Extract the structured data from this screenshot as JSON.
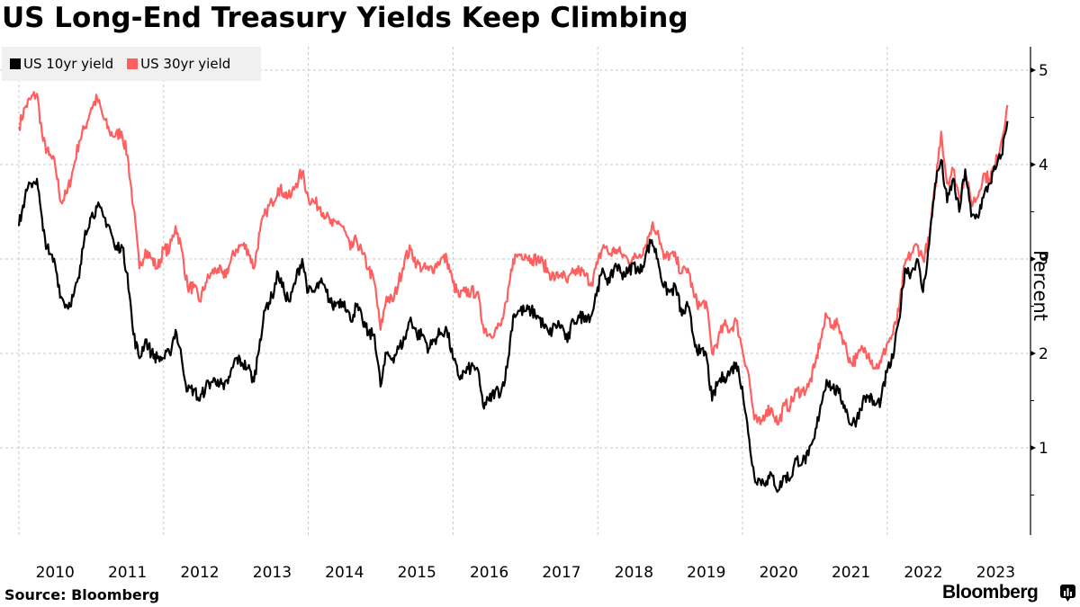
{
  "chart_data": {
    "type": "line",
    "title": "US Long-End Treasury Yields Keep Climbing",
    "xlabel": "",
    "ylabel": "Percent",
    "ylim": [
      0,
      5.25
    ],
    "xlim": [
      2010.0,
      2024.0
    ],
    "y_ticks": [
      "1",
      "2",
      "3",
      "4",
      "5"
    ],
    "x_ticks": [
      "2010",
      "2011",
      "2012",
      "2013",
      "2014",
      "2015",
      "2016",
      "2017",
      "2018",
      "2019",
      "2020",
      "2021",
      "2022",
      "2023"
    ],
    "grid": true,
    "legend_position": "top-left",
    "x_start": 2010.0,
    "x_step_years": 0.0833,
    "series": [
      {
        "name": "US 10yr yield",
        "color": "#000000",
        "values": [
          3.35,
          3.65,
          3.8,
          3.85,
          3.3,
          3.05,
          2.95,
          2.6,
          2.5,
          2.6,
          2.8,
          3.3,
          3.45,
          3.55,
          3.45,
          3.35,
          3.1,
          3.15,
          2.85,
          2.2,
          1.95,
          2.15,
          2.0,
          1.95,
          1.95,
          2.0,
          2.25,
          1.95,
          1.6,
          1.62,
          1.5,
          1.65,
          1.7,
          1.72,
          1.62,
          1.75,
          1.95,
          1.9,
          1.85,
          1.7,
          2.15,
          2.5,
          2.6,
          2.85,
          2.65,
          2.55,
          2.8,
          3.0,
          2.65,
          2.65,
          2.75,
          2.65,
          2.5,
          2.55,
          2.55,
          2.35,
          2.5,
          2.35,
          2.2,
          2.2,
          1.65,
          2.0,
          1.95,
          2.05,
          2.15,
          2.38,
          2.2,
          2.2,
          2.05,
          2.15,
          2.22,
          2.25,
          1.95,
          1.75,
          1.8,
          1.85,
          1.85,
          1.45,
          1.5,
          1.6,
          1.6,
          1.85,
          2.4,
          2.45,
          2.45,
          2.45,
          2.4,
          2.3,
          2.2,
          2.3,
          2.3,
          2.12,
          2.35,
          2.38,
          2.4,
          2.4,
          2.7,
          2.87,
          2.75,
          2.95,
          2.85,
          2.85,
          2.95,
          2.85,
          3.05,
          3.2,
          3.0,
          2.7,
          2.65,
          2.7,
          2.4,
          2.5,
          2.15,
          2.0,
          2.0,
          1.5,
          1.7,
          1.75,
          1.8,
          1.9,
          1.65,
          1.15,
          0.7,
          0.65,
          0.65,
          0.7,
          0.55,
          0.7,
          0.68,
          0.88,
          0.85,
          0.92,
          1.1,
          1.45,
          1.72,
          1.63,
          1.58,
          1.45,
          1.25,
          1.3,
          1.5,
          1.55,
          1.45,
          1.5,
          1.8,
          1.95,
          2.35,
          2.9,
          2.85,
          3.0,
          2.65,
          3.15,
          3.8,
          4.05,
          3.6,
          3.85,
          3.5,
          3.95,
          3.45,
          3.45,
          3.65,
          3.8,
          3.95,
          4.1,
          4.46
        ]
      },
      {
        "name": "US 30yr yield",
        "color": "#ff5f5f",
        "values": [
          4.4,
          4.6,
          4.7,
          4.75,
          4.25,
          4.1,
          4.0,
          3.6,
          3.7,
          3.95,
          4.25,
          4.4,
          4.6,
          4.7,
          4.5,
          4.35,
          4.3,
          4.35,
          4.1,
          3.55,
          2.9,
          3.1,
          3.0,
          2.9,
          3.1,
          3.1,
          3.35,
          3.1,
          2.7,
          2.7,
          2.55,
          2.75,
          2.85,
          2.9,
          2.8,
          2.95,
          3.1,
          3.15,
          3.1,
          2.9,
          3.3,
          3.5,
          3.6,
          3.75,
          3.7,
          3.65,
          3.8,
          3.92,
          3.65,
          3.6,
          3.55,
          3.45,
          3.35,
          3.4,
          3.3,
          3.1,
          3.2,
          3.05,
          2.9,
          2.75,
          2.25,
          2.6,
          2.55,
          2.75,
          3.0,
          3.1,
          2.95,
          2.9,
          2.88,
          2.92,
          3.0,
          3.0,
          2.75,
          2.6,
          2.65,
          2.65,
          2.65,
          2.3,
          2.2,
          2.25,
          2.3,
          2.55,
          3.0,
          3.05,
          3.05,
          3.0,
          3.0,
          2.95,
          2.85,
          2.8,
          2.85,
          2.75,
          2.85,
          2.88,
          2.82,
          2.75,
          2.95,
          3.15,
          3.05,
          3.1,
          3.05,
          3.0,
          3.0,
          3.05,
          3.15,
          3.35,
          3.3,
          3.0,
          3.05,
          3.0,
          2.85,
          2.9,
          2.6,
          2.5,
          2.55,
          2.0,
          2.15,
          2.3,
          2.25,
          2.35,
          2.05,
          1.8,
          1.3,
          1.25,
          1.4,
          1.4,
          1.25,
          1.45,
          1.45,
          1.6,
          1.6,
          1.65,
          1.85,
          2.15,
          2.4,
          2.3,
          2.3,
          2.1,
          1.9,
          1.95,
          2.05,
          2.0,
          1.85,
          1.9,
          2.1,
          2.2,
          2.45,
          2.95,
          3.05,
          3.15,
          3.0,
          3.2,
          3.75,
          4.35,
          3.8,
          3.95,
          3.65,
          3.9,
          3.6,
          3.65,
          3.9,
          3.85,
          4.0,
          4.25,
          4.63
        ]
      }
    ]
  },
  "header": {
    "title": "US Long-End Treasury Yields Keep Climbing"
  },
  "legend": {
    "items": [
      {
        "label": "US 10yr yield",
        "color": "#000000"
      },
      {
        "label": "US 30yr yield",
        "color": "#ff5f5f"
      }
    ]
  },
  "footer": {
    "source": "Source: Bloomberg",
    "brand": "Bloomberg"
  }
}
